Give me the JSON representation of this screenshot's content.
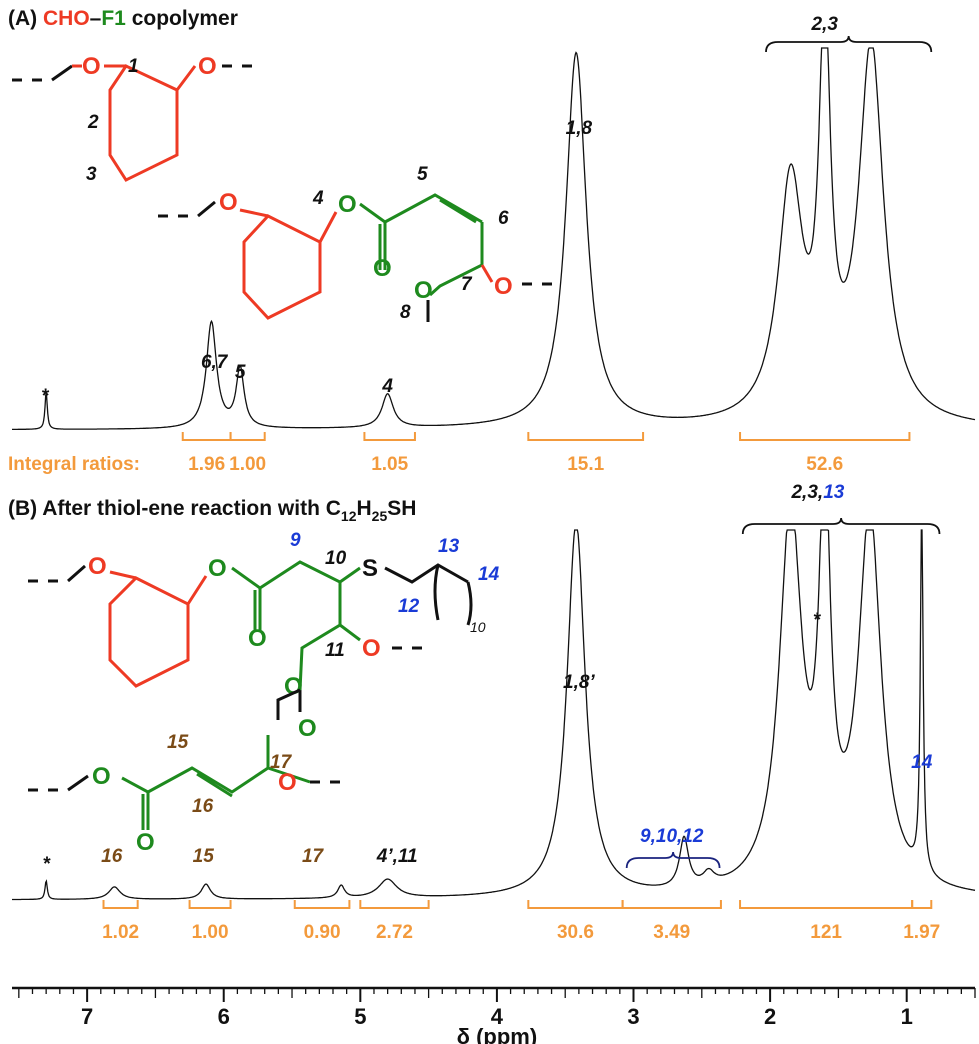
{
  "chart_data": {
    "type": "line",
    "xlabel": "δ (ppm)",
    "x_reversed": true,
    "xlim": [
      7.55,
      0.5
    ],
    "x_ticks": [
      7,
      6,
      5,
      4,
      3,
      2,
      1
    ],
    "colors": {
      "red": "#ee3a24",
      "green": "#1e8a1e",
      "orange": "#f39a3c",
      "blue": "#1a3bd6",
      "brown": "#7a4b17",
      "black": "#111111"
    },
    "panels": [
      {
        "id": "A",
        "title_prefix": "(A) ",
        "title_red": "CHO",
        "title_dash": "–",
        "title_green": "F1",
        "title_suffix": " copolymer",
        "integral_caption": "Integral ratios: ",
        "peaks": [
          {
            "x": 7.3,
            "h": 0.03,
            "w": 0.01
          },
          {
            "x": 6.09,
            "h": 0.085,
            "w": 0.045
          },
          {
            "x": 5.88,
            "h": 0.047,
            "w": 0.035
          },
          {
            "x": 4.8,
            "h": 0.027,
            "w": 0.05
          },
          {
            "x": 3.42,
            "h": 0.3,
            "w": 0.09
          },
          {
            "x": 1.85,
            "h": 0.19,
            "w": 0.11
          },
          {
            "x": 1.6,
            "h": 0.3,
            "w": 0.05
          },
          {
            "x": 1.26,
            "h": 0.3,
            "w": 0.11
          }
        ],
        "peak_labels": [
          {
            "x": 7.31,
            "text": "*",
            "color": "black"
          },
          {
            "x": 6.07,
            "text": "6,7",
            "color": "black"
          },
          {
            "x": 5.88,
            "text": "5",
            "color": "black"
          },
          {
            "x": 4.8,
            "text": "4",
            "color": "black"
          },
          {
            "x": 3.4,
            "text": "1,8",
            "color": "black"
          },
          {
            "x": 1.6,
            "text": "2,3",
            "color": "black"
          }
        ],
        "integrals": [
          {
            "from": 6.3,
            "to": 5.95,
            "value": "1.96"
          },
          {
            "from": 5.95,
            "to": 5.7,
            "value": "1.00"
          },
          {
            "from": 4.97,
            "to": 4.6,
            "value": "1.05"
          },
          {
            "from": 3.77,
            "to": 2.93,
            "value": "15.1"
          },
          {
            "from": 2.22,
            "to": 0.98,
            "value": "52.6"
          }
        ]
      },
      {
        "id": "B",
        "title_prefix": "(B) After thiol-ene reaction with C",
        "title_sub1": "12",
        "title_mid": "H",
        "title_sub2": "25",
        "title_suffix": "SH",
        "peaks": [
          {
            "x": 7.3,
            "h": 0.015,
            "w": 0.01
          },
          {
            "x": 6.8,
            "h": 0.01,
            "w": 0.05
          },
          {
            "x": 6.13,
            "h": 0.012,
            "w": 0.04
          },
          {
            "x": 5.14,
            "h": 0.01,
            "w": 0.03
          },
          {
            "x": 4.8,
            "h": 0.015,
            "w": 0.08
          },
          {
            "x": 3.42,
            "h": 0.3,
            "w": 0.08
          },
          {
            "x": 2.63,
            "h": 0.04,
            "w": 0.04
          },
          {
            "x": 2.45,
            "h": 0.01,
            "w": 0.05
          },
          {
            "x": 1.85,
            "h": 0.3,
            "w": 0.1
          },
          {
            "x": 1.6,
            "h": 0.3,
            "w": 0.05
          },
          {
            "x": 1.27,
            "h": 0.3,
            "w": 0.1
          },
          {
            "x": 0.89,
            "h": 0.3,
            "w": 0.012
          }
        ],
        "peak_labels": [
          {
            "x": 7.3,
            "text": "*",
            "color": "black"
          },
          {
            "x": 6.82,
            "text": "16",
            "color": "brown"
          },
          {
            "x": 6.15,
            "text": "15",
            "color": "brown"
          },
          {
            "x": 5.35,
            "text": "17",
            "color": "brown"
          },
          {
            "x": 4.73,
            "text": "4’,11",
            "color": "black"
          },
          {
            "x": 3.4,
            "text": "1,8’",
            "color": "black"
          },
          {
            "x": 2.72,
            "text": "9,10,12",
            "color": "blue"
          },
          {
            "x": 1.66,
            "text": "*",
            "color": "black"
          },
          {
            "x": 1.65,
            "text": "2,3,",
            "text2": "13",
            "color": "black"
          },
          {
            "x": 0.89,
            "text": "14",
            "color": "blue"
          }
        ],
        "integrals": [
          {
            "from": 6.88,
            "to": 6.63,
            "value": "1.02"
          },
          {
            "from": 6.25,
            "to": 5.95,
            "value": "1.00"
          },
          {
            "from": 5.48,
            "to": 5.08,
            "value": "0.90"
          },
          {
            "from": 5.0,
            "to": 4.5,
            "value": "2.72"
          },
          {
            "from": 3.77,
            "to": 3.08,
            "value": "30.6"
          },
          {
            "from": 3.08,
            "to": 2.36,
            "value": "3.49"
          },
          {
            "from": 2.22,
            "to": 0.96,
            "value": "121"
          },
          {
            "from": 0.96,
            "to": 0.82,
            "value": "1.97"
          }
        ]
      }
    ]
  },
  "structures": {
    "A1_num": [
      "1",
      "2",
      "3"
    ],
    "A2_num": [
      "4",
      "5",
      "6",
      "7",
      "8"
    ],
    "B1_num": [
      "9",
      "10",
      "11",
      "12",
      "13",
      "14",
      "10"
    ],
    "B2_num": [
      "15",
      "16",
      "17"
    ],
    "atom_O": "O",
    "atom_S": "S"
  }
}
